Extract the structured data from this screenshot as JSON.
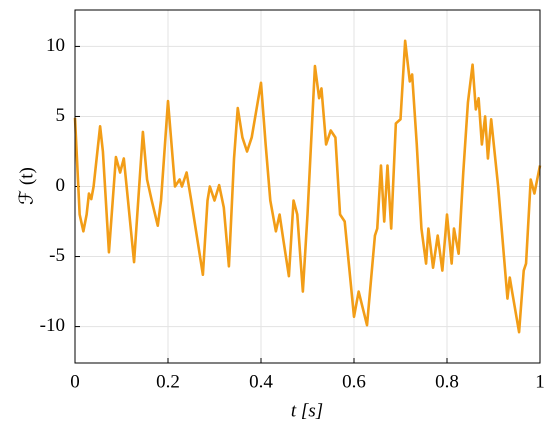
{
  "chart_data": {
    "type": "line",
    "xlabel": "t [s]",
    "ylabel": "ℱ (t)",
    "color": "#f29d17",
    "x": [
      0,
      0.01,
      0.018,
      0.025,
      0.03,
      0.035,
      0.04,
      0.054,
      0.06,
      0.073,
      0.088,
      0.097,
      0.105,
      0.114,
      0.127,
      0.146,
      0.155,
      0.165,
      0.178,
      0.185,
      0.2,
      0.215,
      0.225,
      0.23,
      0.24,
      0.25,
      0.275,
      0.285,
      0.29,
      0.3,
      0.31,
      0.32,
      0.331,
      0.342,
      0.35,
      0.36,
      0.37,
      0.38,
      0.4,
      0.41,
      0.42,
      0.432,
      0.44,
      0.448,
      0.46,
      0.47,
      0.478,
      0.49,
      0.5,
      0.516,
      0.525,
      0.53,
      0.54,
      0.55,
      0.56,
      0.57,
      0.58,
      0.6,
      0.61,
      0.628,
      0.645,
      0.65,
      0.658,
      0.665,
      0.672,
      0.68,
      0.69,
      0.7,
      0.71,
      0.72,
      0.725,
      0.735,
      0.745,
      0.755,
      0.76,
      0.77,
      0.78,
      0.79,
      0.8,
      0.81,
      0.815,
      0.825,
      0.835,
      0.845,
      0.855,
      0.862,
      0.868,
      0.875,
      0.882,
      0.888,
      0.895,
      0.91,
      0.92,
      0.93,
      0.935,
      0.94,
      0.955,
      0.965,
      0.97,
      0.98,
      0.988,
      1
    ],
    "values": [
      4.9,
      -2,
      -3.2,
      -2,
      -0.5,
      -0.9,
      0,
      4.3,
      2.5,
      -4.7,
      2.1,
      1,
      2,
      -1,
      -5.4,
      3.9,
      0.5,
      -1,
      -2.8,
      -1,
      6.1,
      0,
      0.5,
      0,
      1,
      -1,
      -6.3,
      -1,
      0,
      -1,
      0.1,
      -1.5,
      -5.7,
      2,
      5.6,
      3.5,
      2.5,
      3.5,
      7.4,
      3,
      -1,
      -3.2,
      -2,
      -3.8,
      -6.4,
      -1,
      -2,
      -7.5,
      -2,
      8.6,
      6.3,
      7,
      3,
      4,
      3.5,
      -2,
      -2.5,
      -9.3,
      -7.5,
      -9.9,
      -3.5,
      -3,
      1.5,
      -2.5,
      1.5,
      -3,
      4.5,
      4.8,
      10.4,
      7.5,
      8,
      3,
      -3,
      -5.5,
      -3,
      -5.8,
      -3.5,
      -6,
      -2,
      -5.5,
      -3,
      -4.8,
      1,
      6,
      8.7,
      5.5,
      6.3,
      3,
      5,
      2,
      4.8,
      0,
      -4,
      -8,
      -6.5,
      -7.5,
      -10.4,
      -6,
      -5.5,
      0.5,
      -0.5,
      1.5
    ],
    "xlim": [
      0,
      1
    ],
    "xticks": [
      0,
      0.2,
      0.4,
      0.6,
      0.8,
      1
    ],
    "ylim": [
      -12.6,
      12.6
    ],
    "yticks": [
      -10,
      -5,
      0,
      5,
      10
    ],
    "grid": true
  }
}
